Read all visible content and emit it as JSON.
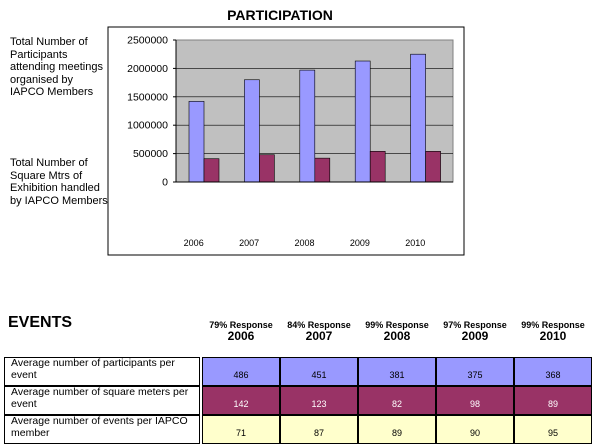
{
  "chart_data": {
    "type": "bar",
    "title": "PARTICIPATION",
    "categories": [
      "2006",
      "2007",
      "2008",
      "2009",
      "2010"
    ],
    "series": [
      {
        "name": "Total Number of Participants attending meetings organised by IAPCO Members",
        "values": [
          1420000,
          1800000,
          1970000,
          2130000,
          2250000
        ],
        "color": "#9999ff"
      },
      {
        "name": "Total Number of Square Mtrs of Exhibition handled by IAPCO Members",
        "values": [
          410000,
          480000,
          420000,
          540000,
          540000
        ],
        "color": "#993366"
      }
    ],
    "ylim": [
      0,
      2500000
    ],
    "yticks": [
      "0",
      "500000",
      "1000000",
      "1500000",
      "2000000",
      "2500000"
    ],
    "grid": true,
    "legend_position": "left"
  },
  "legend": {
    "participants": "Total Number of Participants attending meetings organised by IAPCO Members",
    "exhibition": "Total Number of Square Mtrs of Exhibition handled by IAPCO Members"
  },
  "events": {
    "heading": "EVENTS",
    "columns": [
      {
        "response": "79% Response",
        "year": "2006"
      },
      {
        "response": "84% Response",
        "year": "2007"
      },
      {
        "response": "99% Response",
        "year": "2008"
      },
      {
        "response": "97% Response",
        "year": "2009"
      },
      {
        "response": "99% Response",
        "year": "2010"
      }
    ],
    "rows": [
      {
        "label": "Average number of participants per event",
        "color": "#9999ff",
        "values": [
          "486",
          "451",
          "381",
          "375",
          "368"
        ]
      },
      {
        "label": "Average number of square meters per event",
        "color": "#993366",
        "values": [
          "142",
          "123",
          "82",
          "98",
          "89"
        ]
      },
      {
        "label": "Average number of events per IAPCO member",
        "color": "#ffffcc",
        "values": [
          "71",
          "87",
          "89",
          "90",
          "95"
        ]
      }
    ]
  }
}
